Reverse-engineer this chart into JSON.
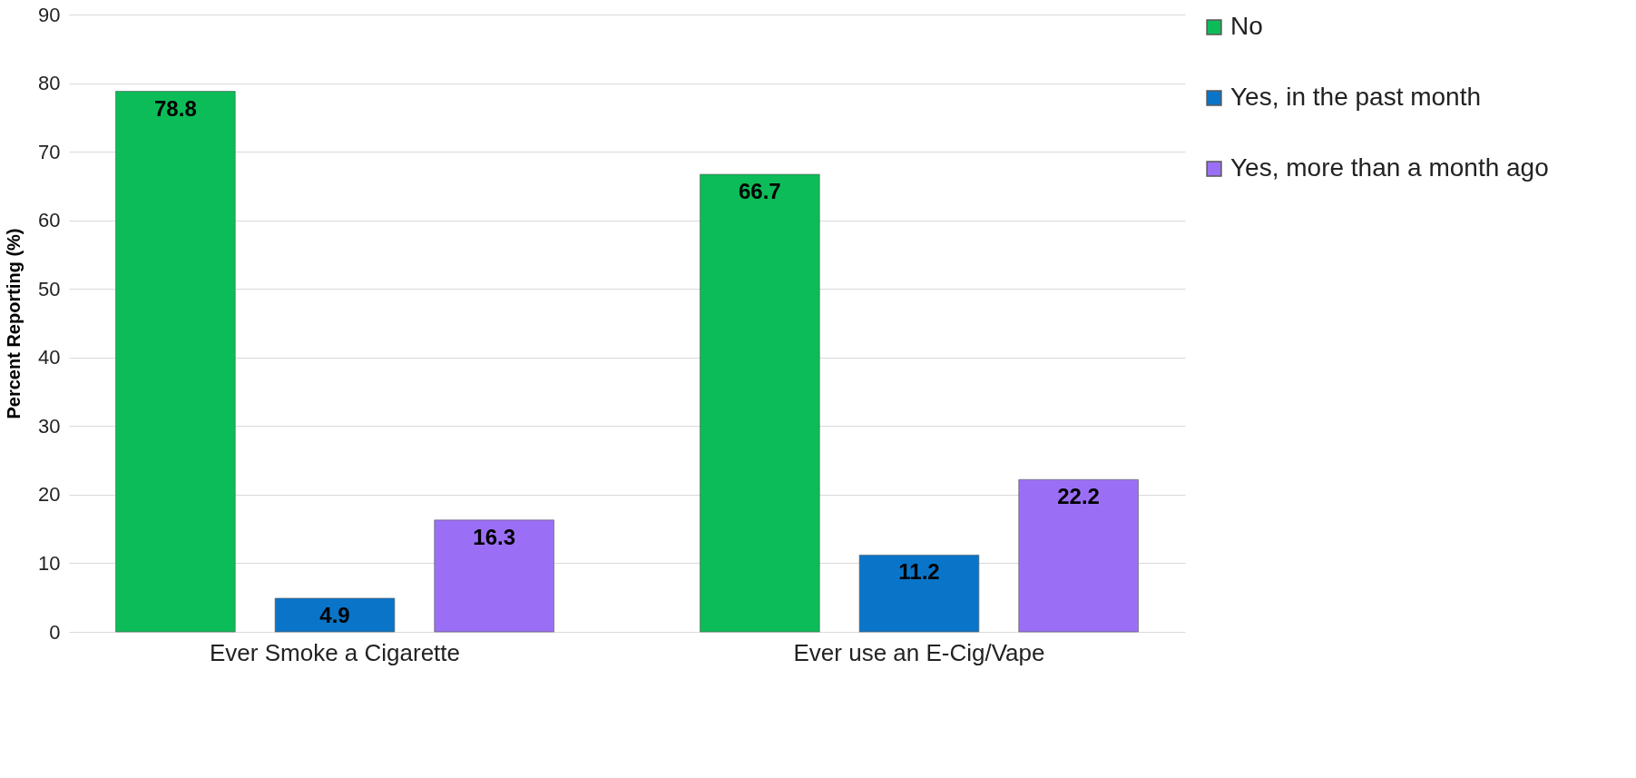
{
  "chart_data": {
    "type": "bar",
    "ylabel": "Percent Reporting (%)",
    "categories": [
      "Ever Smoke a Cigarette",
      "Ever use an E-Cig/Vape"
    ],
    "series": [
      {
        "name": "No",
        "color": "#0cbc58",
        "values": [
          78.8,
          66.7
        ]
      },
      {
        "name": "Yes, in the past month",
        "color": "#0a75c8",
        "values": [
          4.9,
          11.2
        ]
      },
      {
        "name": "Yes, more than a month ago",
        "color": "#9b6ff5",
        "values": [
          16.3,
          22.2
        ]
      }
    ],
    "ylim": [
      0,
      90
    ],
    "yticks": [
      0,
      10,
      20,
      30,
      40,
      50,
      60,
      70,
      80,
      90
    ],
    "grid": "y",
    "legend": "right",
    "data_labels": true
  }
}
